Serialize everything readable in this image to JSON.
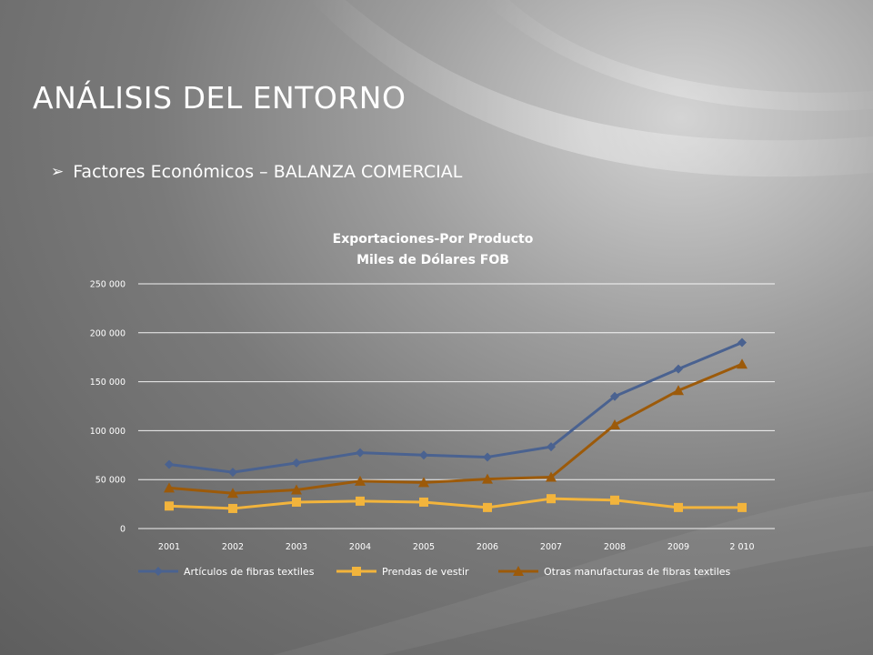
{
  "slide": {
    "title": "ANÁLISIS DEL ENTORNO",
    "bullet_icon": "arrow-bullet-icon",
    "bullet_text": "Factores Económicos – BALANZA COMERCIAL"
  },
  "chart_data": {
    "type": "line",
    "title": "Exportaciones-Por Producto",
    "subtitle": "Miles de Dólares FOB",
    "xlabel": "",
    "ylabel": "",
    "categories": [
      "2001",
      "2002",
      "2003",
      "2004",
      "2005",
      "2006",
      "2007",
      "2008",
      "2009",
      "2 010"
    ],
    "ylim": [
      0,
      250000
    ],
    "yticks": [
      0,
      50000,
      100000,
      150000,
      200000,
      250000
    ],
    "ytick_labels": [
      "0",
      "50 000",
      "100 000",
      "150 000",
      "200 000",
      "250 000"
    ],
    "grid": true,
    "legend": "bottom",
    "series": [
      {
        "name": "Artículos de fibras textiles",
        "marker": "diamond",
        "color": "#4a6290",
        "values": [
          65500,
          57500,
          67000,
          77500,
          75000,
          73000,
          83500,
          135000,
          163000,
          190000
        ]
      },
      {
        "name": "Prendas de vestir",
        "marker": "square",
        "color": "#f2b43c",
        "values": [
          23000,
          20500,
          27000,
          28000,
          27000,
          21500,
          30500,
          29000,
          21500,
          21500
        ]
      },
      {
        "name": "Otras manufacturas de fibras textiles",
        "marker": "triangle",
        "color": "#9c5a0a",
        "values": [
          41500,
          36000,
          39500,
          48500,
          47000,
          50500,
          52500,
          106000,
          141000,
          168000
        ]
      }
    ]
  }
}
